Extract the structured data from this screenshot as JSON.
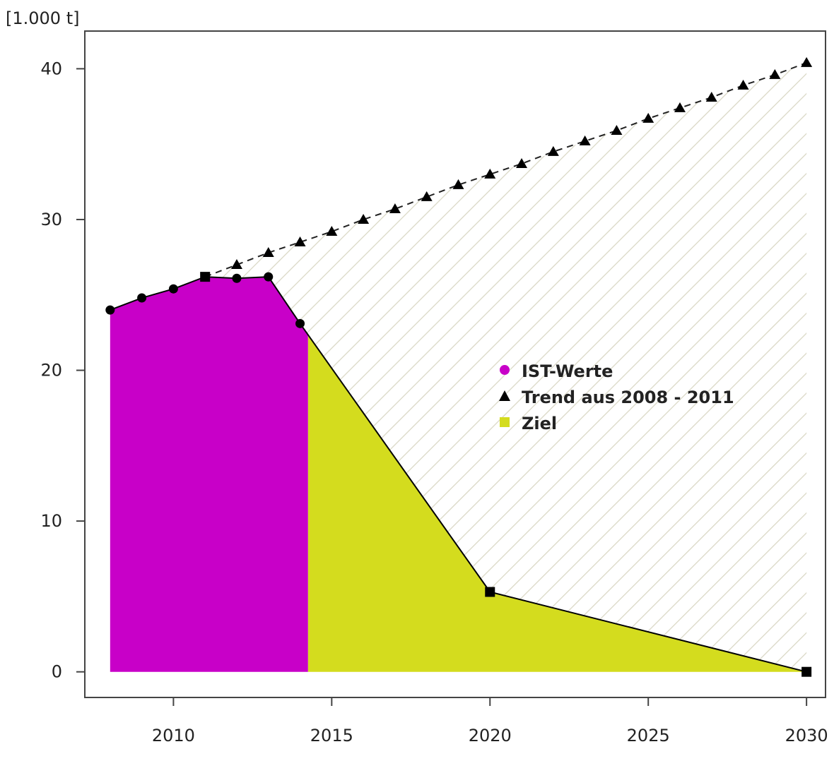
{
  "chart_data": {
    "type": "area",
    "unit_label": "[1.000 t]",
    "x_ticks": [
      2010,
      2015,
      2020,
      2025,
      2030
    ],
    "y_ticks": [
      0,
      10,
      20,
      30,
      40
    ],
    "xlim": [
      2007.2,
      2030.6
    ],
    "ylim": [
      -1.7,
      42.5
    ],
    "legend_position": "center-right",
    "series": [
      {
        "name": "IST-Werte",
        "marker": "circle",
        "color": "#c800c8",
        "x": [
          2008,
          2009,
          2010,
          2011,
          2012,
          2013,
          2014
        ],
        "y": [
          24.0,
          24.8,
          25.4,
          26.2,
          26.1,
          26.2,
          23.1
        ]
      },
      {
        "name": "Trend aus 2008 - 2011",
        "marker": "triangle",
        "color": "#000000",
        "x": [
          2012,
          2013,
          2014,
          2015,
          2016,
          2017,
          2018,
          2019,
          2020,
          2021,
          2022,
          2023,
          2024,
          2025,
          2026,
          2027,
          2028,
          2029,
          2030
        ],
        "y": [
          27.0,
          27.8,
          28.5,
          29.2,
          30.0,
          30.7,
          31.5,
          32.3,
          33.0,
          33.7,
          34.5,
          35.2,
          35.9,
          36.7,
          37.4,
          38.1,
          38.9,
          39.6,
          40.4
        ]
      },
      {
        "name": "Ziel",
        "marker": "square",
        "color": "#d4dc1e",
        "x": [
          2014,
          2020,
          2030
        ],
        "y": [
          23.1,
          5.3,
          0.0
        ]
      }
    ],
    "hatch_color": "#d9d7c4"
  }
}
